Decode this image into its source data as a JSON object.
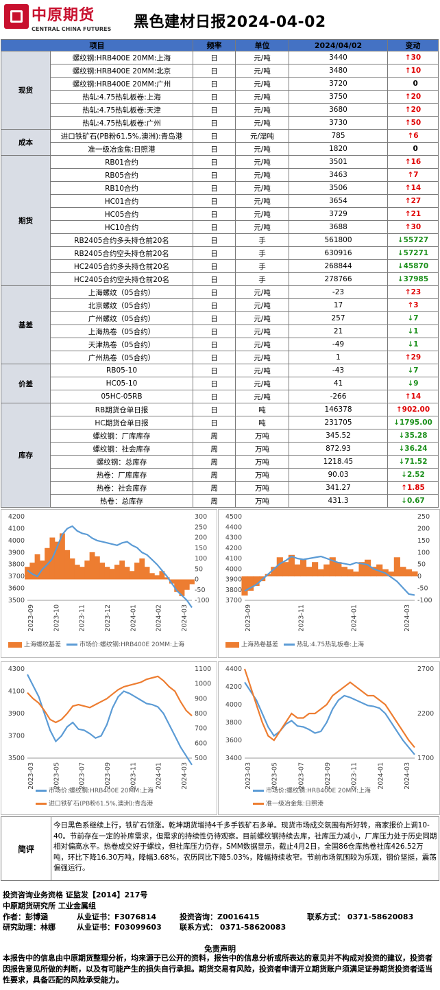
{
  "header": {
    "logo_cn": "中原期货",
    "logo_en": "CENTRAL CHINA FUTURES",
    "title": "黑色建材日报2024-04-02"
  },
  "table": {
    "headers": [
      "项目",
      "频率",
      "单位",
      "2024/04/02",
      "变动"
    ],
    "groups": [
      {
        "name": "现货",
        "rows": [
          {
            "item": "螺纹钢:HRB400E 20MM:上海",
            "freq": "日",
            "unit": "元/吨",
            "value": "3440",
            "dir": "up",
            "change": "30"
          },
          {
            "item": "螺纹钢:HRB400E 20MM:北京",
            "freq": "日",
            "unit": "元/吨",
            "value": "3480",
            "dir": "up",
            "change": "10"
          },
          {
            "item": "螺纹钢:HRB400E 20MM:广州",
            "freq": "日",
            "unit": "元/吨",
            "value": "3720",
            "dir": "none",
            "change": "0"
          },
          {
            "item": "热轧:4.75热轧板卷:上海",
            "freq": "日",
            "unit": "元/吨",
            "value": "3750",
            "dir": "up",
            "change": "20"
          },
          {
            "item": "热轧:4.75热轧板卷:天津",
            "freq": "日",
            "unit": "元/吨",
            "value": "3680",
            "dir": "up",
            "change": "20"
          },
          {
            "item": "热轧:4.75热轧板卷:广州",
            "freq": "日",
            "unit": "元/吨",
            "value": "3730",
            "dir": "up",
            "change": "50"
          }
        ]
      },
      {
        "name": "成本",
        "rows": [
          {
            "item": "进口铁矿石(PB粉61.5%,澳洲):青岛港",
            "freq": "日",
            "unit": "元/湿吨",
            "value": "785",
            "dir": "up",
            "change": "6"
          },
          {
            "item": "准一级冶金焦:日照港",
            "freq": "日",
            "unit": "元/吨",
            "value": "1820",
            "dir": "none",
            "change": "0"
          }
        ]
      },
      {
        "name": "期货",
        "rows": [
          {
            "item": "RB01合约",
            "freq": "日",
            "unit": "元/吨",
            "value": "3501",
            "dir": "up",
            "change": "16"
          },
          {
            "item": "RB05合约",
            "freq": "日",
            "unit": "元/吨",
            "value": "3463",
            "dir": "up",
            "change": "7"
          },
          {
            "item": "RB10合约",
            "freq": "日",
            "unit": "元/吨",
            "value": "3506",
            "dir": "up",
            "change": "14"
          },
          {
            "item": "HC01合约",
            "freq": "日",
            "unit": "元/吨",
            "value": "3654",
            "dir": "up",
            "change": "27"
          },
          {
            "item": "HC05合约",
            "freq": "日",
            "unit": "元/吨",
            "value": "3729",
            "dir": "up",
            "change": "21"
          },
          {
            "item": "HC10合约",
            "freq": "日",
            "unit": "元/吨",
            "value": "3688",
            "dir": "up",
            "change": "30"
          },
          {
            "item": "RB2405合约多头持仓前20名",
            "freq": "日",
            "unit": "手",
            "value": "561800",
            "dir": "dn",
            "change": "55727"
          },
          {
            "item": "RB2405合约空头持仓前20名",
            "freq": "日",
            "unit": "手",
            "value": "630916",
            "dir": "dn",
            "change": "57271"
          },
          {
            "item": "HC2405合约多头持仓前20名",
            "freq": "日",
            "unit": "手",
            "value": "268844",
            "dir": "dn",
            "change": "45870"
          },
          {
            "item": "HC2405合约空头持仓前20名",
            "freq": "日",
            "unit": "手",
            "value": "278766",
            "dir": "dn",
            "change": "37985"
          }
        ]
      },
      {
        "name": "基差",
        "rows": [
          {
            "item": "上海螺纹（05合约）",
            "freq": "日",
            "unit": "元/吨",
            "value": "-23",
            "dir": "up",
            "change": "23"
          },
          {
            "item": "北京螺纹（05合约）",
            "freq": "日",
            "unit": "元/吨",
            "value": "17",
            "dir": "up",
            "change": "3"
          },
          {
            "item": "广州螺纹（05合约）",
            "freq": "日",
            "unit": "元/吨",
            "value": "257",
            "dir": "dn",
            "change": "7"
          },
          {
            "item": "上海热卷（05合约）",
            "freq": "日",
            "unit": "元/吨",
            "value": "21",
            "dir": "dn",
            "change": "1"
          },
          {
            "item": "天津热卷（05合约）",
            "freq": "日",
            "unit": "元/吨",
            "value": "-49",
            "dir": "dn",
            "change": "1"
          },
          {
            "item": "广州热卷（05合约）",
            "freq": "日",
            "unit": "元/吨",
            "value": "1",
            "dir": "up",
            "change": "29"
          }
        ]
      },
      {
        "name": "价差",
        "rows": [
          {
            "item": "RB05-10",
            "freq": "日",
            "unit": "元/吨",
            "value": "-43",
            "dir": "dn",
            "change": "7"
          },
          {
            "item": "HC05-10",
            "freq": "日",
            "unit": "元/吨",
            "value": "41",
            "dir": "dn",
            "change": "9"
          },
          {
            "item": "05HC-05RB",
            "freq": "日",
            "unit": "元/吨",
            "value": "-266",
            "dir": "up",
            "change": "14"
          }
        ]
      },
      {
        "name": "库存",
        "rows": [
          {
            "item": "RB期货仓单日报",
            "freq": "日",
            "unit": "吨",
            "value": "146378",
            "dir": "up",
            "change": "902.00"
          },
          {
            "item": "HC期货仓单日报",
            "freq": "日",
            "unit": "吨",
            "value": "231705",
            "dir": "dn",
            "change": "1795.00"
          },
          {
            "item": "螺纹钢：厂库库存",
            "freq": "周",
            "unit": "万吨",
            "value": "345.52",
            "dir": "dn",
            "change": "35.28"
          },
          {
            "item": "螺纹钢：社会库存",
            "freq": "周",
            "unit": "万吨",
            "value": "872.93",
            "dir": "dn",
            "change": "36.24"
          },
          {
            "item": "螺纹钢：总库存",
            "freq": "周",
            "unit": "万吨",
            "value": "1218.45",
            "dir": "dn",
            "change": "71.52"
          },
          {
            "item": "热卷：厂库库存",
            "freq": "周",
            "unit": "万吨",
            "value": "90.03",
            "dir": "dn",
            "change": "2.52"
          },
          {
            "item": "热卷：社会库存",
            "freq": "周",
            "unit": "万吨",
            "value": "341.27",
            "dir": "up",
            "change": "1.85"
          },
          {
            "item": "热卷：总库存",
            "freq": "周",
            "unit": "万吨",
            "value": "431.3",
            "dir": "dn",
            "change": "0.67"
          }
        ]
      }
    ]
  },
  "chart_data": [
    {
      "type": "area",
      "left_axis": [
        3500,
        3600,
        3700,
        3800,
        3900,
        4000,
        4100,
        4200
      ],
      "right_axis": [
        -100,
        -50,
        0,
        50,
        100,
        150,
        200,
        250,
        300
      ],
      "x_ticks": [
        "2023-09",
        "2023-10",
        "2023-11",
        "2023-12",
        "2024-01",
        "2024-02",
        "2024-03"
      ],
      "series": [
        {
          "name": "上海螺纹基差",
          "kind": "area",
          "color": "#ed7d31",
          "axis": "right",
          "values": [
            60,
            80,
            120,
            90,
            150,
            200,
            180,
            220,
            140,
            100,
            70,
            60,
            90,
            130,
            110,
            80,
            60,
            50,
            70,
            90,
            60,
            40,
            80,
            100,
            60,
            30,
            20,
            40,
            10,
            -20,
            -60,
            -80,
            -50,
            -23
          ]
        },
        {
          "name": "市场价:螺纹钢:HRB400E 20MM:上海",
          "kind": "line",
          "color": "#5b9bd5",
          "axis": "left",
          "values": [
            3750,
            3720,
            3700,
            3760,
            3800,
            3850,
            3950,
            4050,
            4100,
            4120,
            4080,
            4060,
            4050,
            4020,
            4000,
            3990,
            3980,
            3970,
            3960,
            3980,
            3990,
            3960,
            3940,
            3900,
            3880,
            3840,
            3800,
            3750,
            3700,
            3640,
            3580,
            3540,
            3500,
            3440
          ]
        }
      ]
    },
    {
      "type": "area",
      "left_axis": [
        3700,
        3800,
        3900,
        4000,
        4100,
        4200,
        4300,
        4400,
        4500
      ],
      "right_axis": [
        -100,
        -50,
        0,
        50,
        100,
        150,
        200,
        250
      ],
      "x_ticks": [
        "2023-09",
        "2023-11",
        "2024-01",
        "2024-03"
      ],
      "series": [
        {
          "name": "上海热卷基差",
          "kind": "area",
          "color": "#ed7d31",
          "axis": "right",
          "values": [
            -80,
            -60,
            -40,
            -20,
            10,
            40,
            80,
            60,
            90,
            50,
            70,
            40,
            60,
            30,
            50,
            80,
            60,
            40,
            30,
            20,
            60,
            70,
            40,
            50,
            30,
            20,
            80,
            40,
            30,
            21
          ]
        },
        {
          "name": "热轧:4.75热轧板卷:上海",
          "kind": "line",
          "color": "#5b9bd5",
          "axis": "left",
          "values": [
            3790,
            3820,
            3850,
            3900,
            3950,
            4000,
            4050,
            4080,
            4120,
            4100,
            4090,
            4100,
            4110,
            4120,
            4100,
            4080,
            4060,
            4050,
            4040,
            4060,
            4050,
            4040,
            4000,
            3980,
            3960,
            3920,
            3880,
            3820,
            3760,
            3750
          ]
        }
      ]
    },
    {
      "type": "line",
      "left_axis": [
        3500,
        3700,
        3900,
        4100,
        4300
      ],
      "right_axis": [
        500,
        600,
        700,
        800,
        900,
        1000,
        1100
      ],
      "x_ticks": [
        "2023-03",
        "2023-05",
        "2023-07",
        "2023-09",
        "2023-11",
        "2024-01",
        "2024-03"
      ],
      "series": [
        {
          "name": "市场价:螺纹钢:HRB400E 20MM:上海",
          "kind": "line",
          "color": "#5b9bd5",
          "axis": "left",
          "values": [
            4250,
            4150,
            4050,
            3900,
            3750,
            3650,
            3700,
            3780,
            3820,
            3760,
            3750,
            3720,
            3680,
            3700,
            3800,
            3950,
            4050,
            4100,
            4080,
            4050,
            4020,
            3990,
            3980,
            3960,
            3900,
            3800,
            3700,
            3600,
            3520,
            3440
          ]
        },
        {
          "name": "进口铁矿石(PB粉61.5%,澳洲):青岛港",
          "kind": "line",
          "color": "#ed7d31",
          "axis": "right",
          "values": [
            940,
            900,
            870,
            820,
            760,
            740,
            760,
            800,
            850,
            860,
            850,
            840,
            860,
            880,
            900,
            930,
            960,
            980,
            990,
            1000,
            1010,
            1030,
            1040,
            1050,
            1020,
            980,
            950,
            880,
            820,
            785
          ]
        }
      ]
    },
    {
      "type": "line",
      "left_axis": [
        3400,
        3600,
        3800,
        4000,
        4200,
        4400
      ],
      "right_axis": [
        1700,
        2200,
        2700
      ],
      "x_ticks": [
        "2023-03",
        "2023-05",
        "2023-07",
        "2023-09",
        "2023-11",
        "2024-01",
        "2024-03"
      ],
      "series": [
        {
          "name": "市场价:螺纹钢:HRB400E 20MM:上海",
          "kind": "line",
          "color": "#5b9bd5",
          "axis": "left",
          "values": [
            4250,
            4150,
            4050,
            3900,
            3750,
            3650,
            3700,
            3780,
            3820,
            3760,
            3750,
            3720,
            3680,
            3700,
            3800,
            3950,
            4050,
            4100,
            4080,
            4050,
            4020,
            3990,
            3980,
            3960,
            3900,
            3800,
            3700,
            3600,
            3520,
            3440
          ]
        },
        {
          "name": "准一级冶金焦:日照港",
          "kind": "line",
          "color": "#ed7d31",
          "axis": "right",
          "values": [
            2700,
            2500,
            2300,
            2100,
            1950,
            1900,
            2000,
            2100,
            2200,
            2150,
            2150,
            2200,
            2200,
            2250,
            2300,
            2400,
            2450,
            2500,
            2550,
            2500,
            2450,
            2400,
            2400,
            2350,
            2300,
            2200,
            2100,
            2000,
            1900,
            1820
          ]
        }
      ]
    }
  ],
  "comment": {
    "label": "简评",
    "text": "今日黑色系继续上行，铁矿石领涨。乾坤期货增持4千多手铁矿石多单。现货市场成交氛围有所好转，商家报价上调10-40。节前存在一定的补库需求，但需求的持续性仍待观察。目前螺纹钢持续去库，社库压力减小，厂库压力处于历史同期相对偏高水平。热卷成交好于螺纹，但社库压力仍存，SMM数据显示，截止4月2日，全国86仓库热卷社库426.52万吨，环比下降16.30万吨，降幅3.68%，农历同比下降5.03%，降幅持续收窄。节前市场氛围较为乐观，钢价坚挺，震荡偏强运行。"
  },
  "info": {
    "line1": "投资咨询业务资格  证监发【2014】217号",
    "line2": "中原期货研究所  工业金属组",
    "author_label": "作者：彭博涵",
    "author_cert": "从业证书：F3076814",
    "author_consult": "投资咨询：Z0016415",
    "author_contact": "联系方式： 0371-58620083",
    "assistant_label": "研究助理：林娜",
    "assistant_cert": "从业证书：F03099603",
    "assistant_contact": "联系方式： 0371-58620083"
  },
  "disclaimer": {
    "title": "免责声明",
    "text": "本报告中的信息由中原期货整理分析，均来源于已公开的资料，报告中的信息分析或所表达的意见并不构成对投资的建议，投资者因报告意见所做的判断，以及有可能产生的损失自行承担。期货交易有风险，投资者申请开立期货账户须满足证券期货投资者适当性要求，具备匹配的风险承受能力。"
  }
}
